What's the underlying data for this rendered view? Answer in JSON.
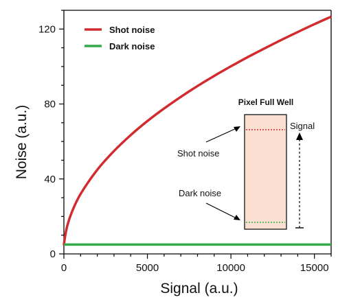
{
  "chart_data": {
    "type": "line",
    "xlabel": "Signal (a.u.)",
    "ylabel": "Noise (a.u.)",
    "xlim": [
      0,
      16000
    ],
    "ylim": [
      0,
      130
    ],
    "x_ticks": [
      0,
      5000,
      10000,
      15000
    ],
    "y_ticks": [
      0,
      40,
      80,
      120
    ],
    "x_tick_labels": [
      "0",
      "5000",
      "10000",
      "15000"
    ],
    "y_tick_labels": [
      "0",
      "40",
      "80",
      "120"
    ],
    "grid": false,
    "legend_position": "top-left",
    "series": [
      {
        "name": "Shot noise",
        "color": "#d12b2f",
        "x": [
          0,
          50,
          200,
          500,
          1000,
          2000,
          3000,
          4000,
          5000,
          6000,
          7000,
          8000,
          9000,
          10000,
          11000,
          12000,
          13000,
          14000,
          15000,
          16000
        ],
        "y": [
          4.5,
          8.1,
          14.9,
          22.8,
          32.0,
          44.9,
          54.9,
          63.4,
          70.9,
          77.6,
          83.8,
          89.6,
          95.0,
          100.1,
          105.0,
          109.6,
          114.1,
          118.4,
          122.6,
          126.6
        ]
      },
      {
        "name": "Dark noise",
        "color": "#35a84a",
        "x": [
          0,
          16000
        ],
        "y": [
          5,
          5
        ]
      }
    ],
    "inset": {
      "title": "Pixel Full Well",
      "labels": {
        "shot": "Shot noise",
        "dark": "Dark noise",
        "signal": "Signal"
      },
      "fill_color": "#fbe0d2",
      "shot_line_color": "#d12b2f",
      "dark_line_color": "#35a84a"
    }
  }
}
